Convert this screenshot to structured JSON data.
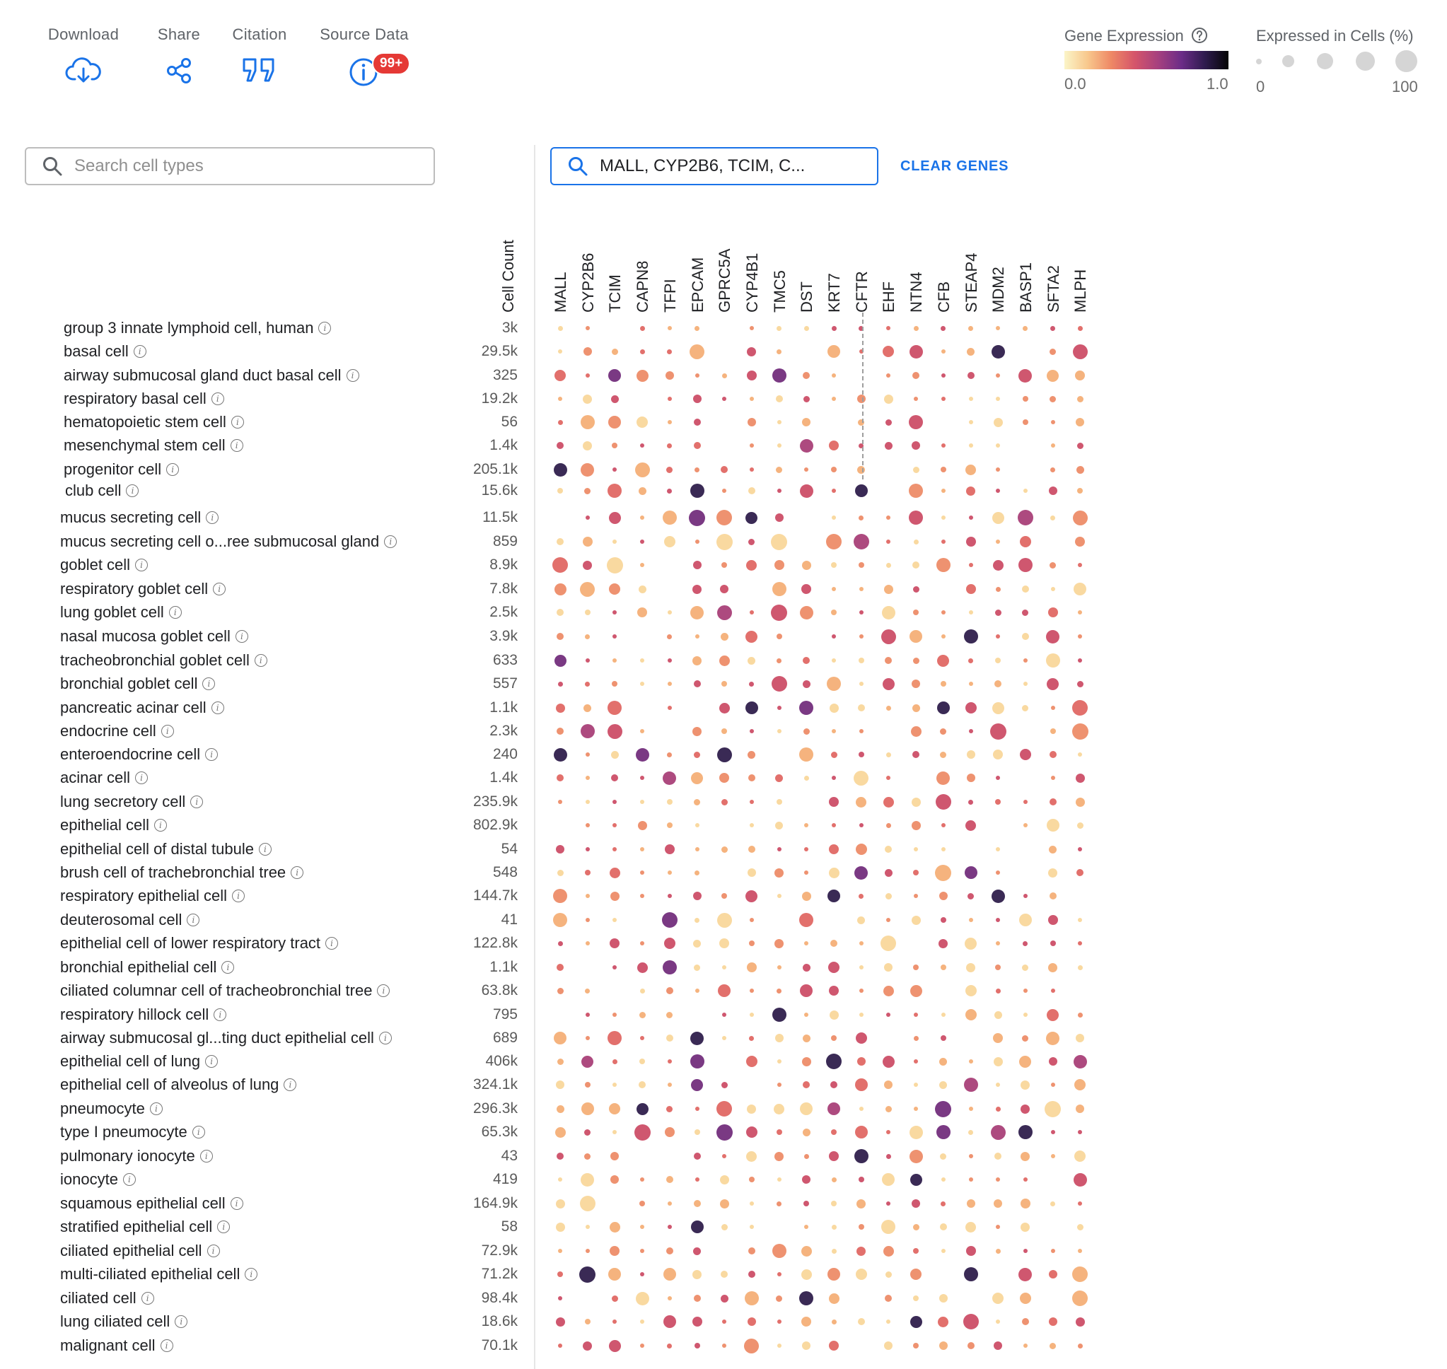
{
  "toolbar": {
    "download_label": "Download",
    "share_label": "Share",
    "citation_label": "Citation",
    "source_data_label": "Source Data",
    "source_data_badge": "99+"
  },
  "legend": {
    "expression_title": "Gene Expression",
    "expression_min": "0.0",
    "expression_max": "1.0",
    "percent_title": "Expressed in Cells (%)",
    "percent_min": "0",
    "percent_max": "100"
  },
  "search": {
    "cells_placeholder": "Search cell types",
    "genes_value": "MALL, CYP2B6, TCIM, C..."
  },
  "clear_genes_label": "CLEAR GENES",
  "cell_count_header": "Cell Count",
  "chart_data": {
    "type": "dotplot",
    "genes": [
      "MALL",
      "CYP2B6",
      "TCIM",
      "CAPN8",
      "TFPI",
      "EPCAM",
      "GPRC5A",
      "CYP4B1",
      "TMC5",
      "DST",
      "KRT7",
      "CFTR",
      "EHF",
      "NTN4",
      "CFB",
      "STEAP4",
      "MDM2",
      "BASP1",
      "SFTA2",
      "MLPH"
    ],
    "rows": [
      {
        "label": "group 3 innate lymphoid cell, human",
        "count": "3k",
        "d": "------11-1-1-1---1-1-1---0----1-1-1---0----1-1-"
      },
      {
        "label": "basal cell",
        "count": "29.5k",
        "d": "1-1-1-1---1-1-1---2-1-1-1---1---1-1-1-1---1---1-1-"
      },
      {
        "label": "airway submucosal gland duct basal cell",
        "count": "325",
        "d": ""
      },
      {
        "label": "respiratory basal cell",
        "count": "19.2k",
        "d": ""
      },
      {
        "label": "hematopoietic stem cell",
        "count": "56",
        "d": ""
      },
      {
        "label": "mesenchymal stem cell",
        "count": "1.4k",
        "d": ""
      },
      {
        "label": "progenitor cell",
        "count": "205.1k",
        "d": ""
      },
      {
        "label": "club cell",
        "count": "15.6k",
        "d": ""
      },
      {
        "label": "mucus secreting cell",
        "count": "11.5k",
        "d": ""
      },
      {
        "label": "mucus secreting cell o...ree submucosal gland",
        "count": "859",
        "d": ""
      },
      {
        "label": "goblet cell",
        "count": "8.9k",
        "d": ""
      },
      {
        "label": "respiratory goblet cell",
        "count": "7.8k",
        "d": ""
      },
      {
        "label": "lung goblet cell",
        "count": "2.5k",
        "d": ""
      },
      {
        "label": "nasal mucosa goblet cell",
        "count": "3.9k",
        "d": ""
      },
      {
        "label": "tracheobronchial goblet cell",
        "count": "633",
        "d": ""
      },
      {
        "label": "bronchial goblet cell",
        "count": "557",
        "d": ""
      },
      {
        "label": "pancreatic acinar cell",
        "count": "1.1k",
        "d": ""
      },
      {
        "label": "endocrine cell",
        "count": "2.3k",
        "d": ""
      },
      {
        "label": "enteroendocrine cell",
        "count": "240",
        "d": ""
      },
      {
        "label": "acinar cell",
        "count": "1.4k",
        "d": ""
      },
      {
        "label": "lung secretory cell",
        "count": "235.9k",
        "d": ""
      },
      {
        "label": "epithelial cell",
        "count": "802.9k",
        "d": ""
      },
      {
        "label": "epithelial cell of distal tubule",
        "count": "54",
        "d": ""
      },
      {
        "label": "brush cell of trachebronchial tree",
        "count": "548",
        "d": ""
      },
      {
        "label": "respiratory epithelial cell",
        "count": "144.7k",
        "d": ""
      },
      {
        "label": "deuterosomal cell",
        "count": "41",
        "d": ""
      },
      {
        "label": "epithelial cell of lower respiratory tract",
        "count": "122.8k",
        "d": ""
      },
      {
        "label": "bronchial epithelial cell",
        "count": "1.1k",
        "d": ""
      },
      {
        "label": "ciliated columnar cell of tracheobronchial tree",
        "count": "63.8k",
        "d": ""
      },
      {
        "label": "respiratory hillock cell",
        "count": "795",
        "d": ""
      },
      {
        "label": "airway submucosal gl...ting duct epithelial cell",
        "count": "689",
        "d": ""
      },
      {
        "label": "epithelial cell of lung",
        "count": "406k",
        "d": ""
      },
      {
        "label": "epithelial cell of alveolus of lung",
        "count": "324.1k",
        "d": ""
      },
      {
        "label": "pneumocyte",
        "count": "296.3k",
        "d": ""
      },
      {
        "label": "type I pneumocyte",
        "count": "65.3k",
        "d": ""
      },
      {
        "label": "pulmonary ionocyte",
        "count": "43",
        "d": ""
      },
      {
        "label": "ionocyte",
        "count": "419",
        "d": ""
      },
      {
        "label": "squamous epithelial cell",
        "count": "164.9k",
        "d": ""
      },
      {
        "label": "stratified epithelial cell",
        "count": "58",
        "d": ""
      },
      {
        "label": "ciliated epithelial cell",
        "count": "72.9k",
        "d": ""
      },
      {
        "label": "multi-ciliated epithelial cell",
        "count": "71.2k",
        "d": ""
      },
      {
        "label": "ciliated cell",
        "count": "98.4k",
        "d": ""
      },
      {
        "label": "lung ciliated cell",
        "count": "18.6k",
        "d": ""
      },
      {
        "label": "malignant cell",
        "count": "70.1k",
        "d": ""
      }
    ]
  }
}
